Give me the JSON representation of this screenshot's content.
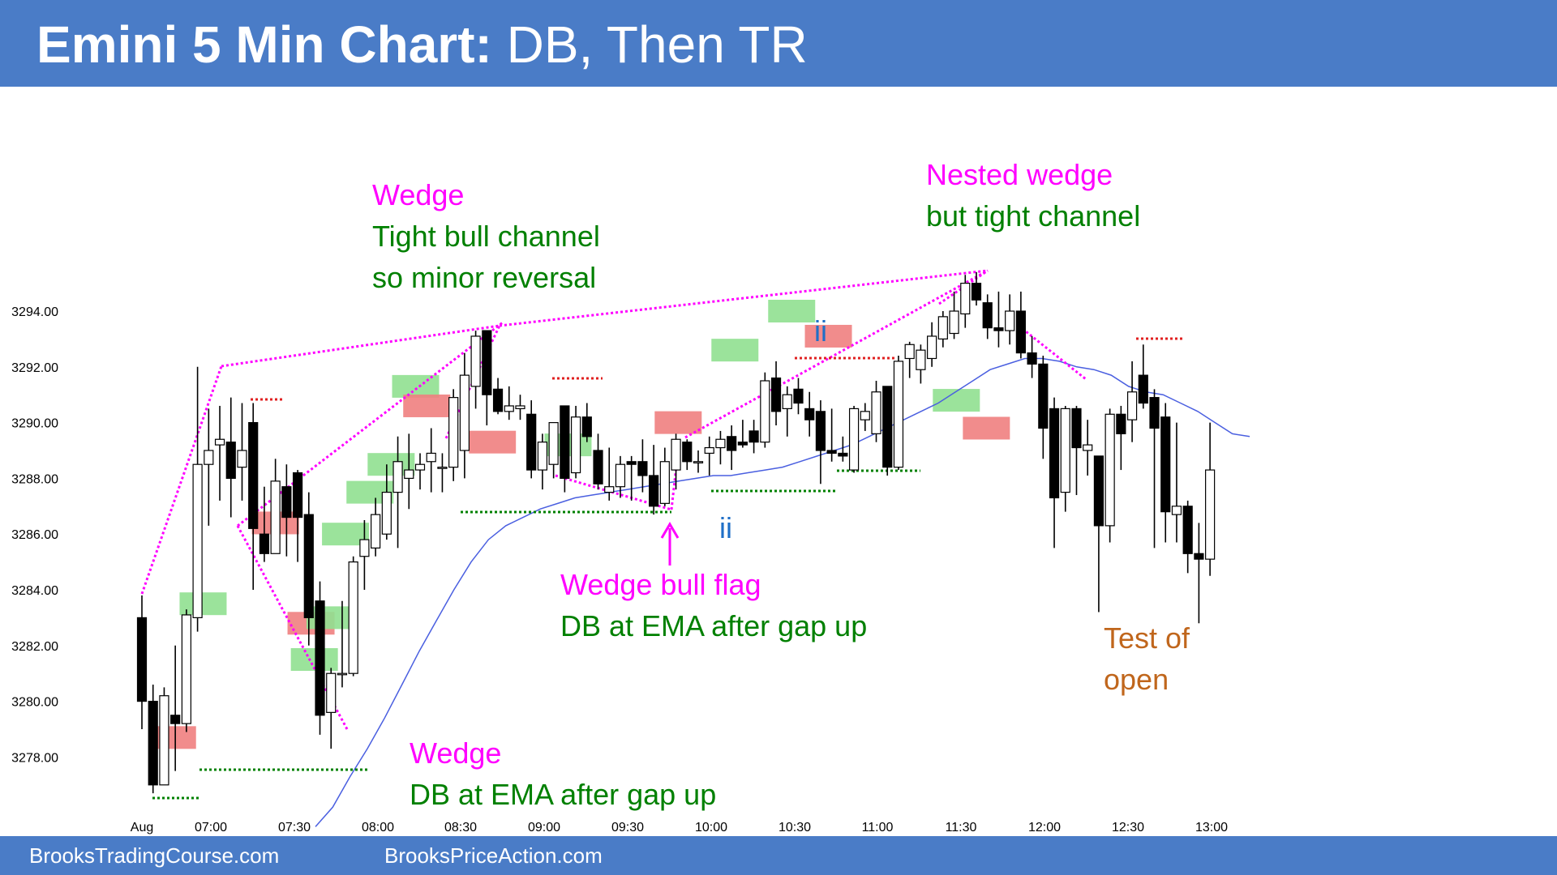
{
  "header": {
    "title_bold": "Emini 5 Min Chart:",
    "title_rest": " DB, Then TR"
  },
  "footer": {
    "left": "BrooksTradingCourse.com",
    "right": "BrooksPriceAction.com"
  },
  "colors": {
    "header_bg": "#4a7cc7",
    "bull_bar": "#90e090",
    "bear_bar": "#f08080",
    "magenta": "#ff00ff",
    "green": "#008000",
    "orange": "#c0661c",
    "ema": "#4a5fe0",
    "ii": "#1f6fc7"
  },
  "chart_data": {
    "type": "candlestick",
    "title": "",
    "ylim": [
      3276.5,
      3297
    ],
    "y_ticks": [
      "3294.00",
      "3292.00",
      "3290.00",
      "3288.00",
      "3286.00",
      "3284.00",
      "3282.00",
      "3280.00",
      "3278.00"
    ],
    "x_ticks": [
      "Aug",
      "07:00",
      "07:30",
      "08:00",
      "08:30",
      "09:00",
      "09:30",
      "10:00",
      "10:30",
      "11:00",
      "11:30",
      "12:00",
      "12:30",
      "13:00"
    ],
    "candles": [
      {
        "o": 3283.0,
        "h": 3283.8,
        "l": 3279.0,
        "c": 3280.0
      },
      {
        "o": 3280.0,
        "h": 3280.6,
        "l": 3276.7,
        "c": 3277.0
      },
      {
        "o": 3277.0,
        "h": 3280.5,
        "l": 3277.0,
        "c": 3280.2
      },
      {
        "o": 3279.5,
        "h": 3282.0,
        "l": 3277.5,
        "c": 3279.2
      },
      {
        "o": 3279.2,
        "h": 3283.3,
        "l": 3278.9,
        "c": 3283.1
      },
      {
        "o": 3283.0,
        "h": 3292.0,
        "l": 3282.5,
        "c": 3288.5
      },
      {
        "o": 3288.5,
        "h": 3290.5,
        "l": 3286.3,
        "c": 3289.0
      },
      {
        "o": 3289.2,
        "h": 3290.6,
        "l": 3287.2,
        "c": 3289.4
      },
      {
        "o": 3289.3,
        "h": 3290.9,
        "l": 3286.6,
        "c": 3288.0
      },
      {
        "o": 3288.4,
        "h": 3290.7,
        "l": 3287.2,
        "c": 3289.0
      },
      {
        "o": 3290.0,
        "h": 3290.7,
        "l": 3284.0,
        "c": 3286.2
      },
      {
        "o": 3286.0,
        "h": 3287.7,
        "l": 3285.0,
        "c": 3285.3
      },
      {
        "o": 3285.3,
        "h": 3288.7,
        "l": 3285.3,
        "c": 3287.9
      },
      {
        "o": 3287.7,
        "h": 3288.5,
        "l": 3285.2,
        "c": 3286.6
      },
      {
        "o": 3288.2,
        "h": 3288.3,
        "l": 3285.0,
        "c": 3286.6
      },
      {
        "o": 3286.7,
        "h": 3287.5,
        "l": 3282.0,
        "c": 3283.0
      },
      {
        "o": 3283.6,
        "h": 3284.3,
        "l": 3278.8,
        "c": 3279.5
      },
      {
        "o": 3279.6,
        "h": 3281.2,
        "l": 3278.3,
        "c": 3281.0
      },
      {
        "o": 3281.0,
        "h": 3283.6,
        "l": 3280.5,
        "c": 3281.0
      },
      {
        "o": 3281.0,
        "h": 3285.2,
        "l": 3280.9,
        "c": 3285.0
      },
      {
        "o": 3285.2,
        "h": 3286.5,
        "l": 3284.0,
        "c": 3285.8
      },
      {
        "o": 3285.5,
        "h": 3287.3,
        "l": 3285.2,
        "c": 3286.7
      },
      {
        "o": 3286.0,
        "h": 3288.5,
        "l": 3285.8,
        "c": 3287.5
      },
      {
        "o": 3287.5,
        "h": 3289.5,
        "l": 3285.5,
        "c": 3288.6
      },
      {
        "o": 3288.0,
        "h": 3289.6,
        "l": 3286.9,
        "c": 3288.3
      },
      {
        "o": 3288.3,
        "h": 3288.9,
        "l": 3287.6,
        "c": 3288.5
      },
      {
        "o": 3288.6,
        "h": 3289.8,
        "l": 3287.5,
        "c": 3288.9
      },
      {
        "o": 3288.4,
        "h": 3288.9,
        "l": 3287.5,
        "c": 3288.4
      },
      {
        "o": 3288.4,
        "h": 3291.2,
        "l": 3287.9,
        "c": 3290.9
      },
      {
        "o": 3289.0,
        "h": 3292.5,
        "l": 3288.0,
        "c": 3291.7
      },
      {
        "o": 3291.3,
        "h": 3293.3,
        "l": 3290.5,
        "c": 3293.1
      },
      {
        "o": 3293.3,
        "h": 3293.3,
        "l": 3289.9,
        "c": 3291.0
      },
      {
        "o": 3291.2,
        "h": 3291.6,
        "l": 3290.3,
        "c": 3290.4
      },
      {
        "o": 3290.4,
        "h": 3291.3,
        "l": 3290.1,
        "c": 3290.6
      },
      {
        "o": 3290.5,
        "h": 3291.0,
        "l": 3290.1,
        "c": 3290.6
      },
      {
        "o": 3290.3,
        "h": 3290.8,
        "l": 3288.0,
        "c": 3288.3
      },
      {
        "o": 3288.3,
        "h": 3289.6,
        "l": 3287.6,
        "c": 3289.3
      },
      {
        "o": 3288.5,
        "h": 3290.0,
        "l": 3288.0,
        "c": 3290.0
      },
      {
        "o": 3290.6,
        "h": 3290.6,
        "l": 3287.5,
        "c": 3288.0
      },
      {
        "o": 3288.2,
        "h": 3290.6,
        "l": 3288.0,
        "c": 3290.2
      },
      {
        "o": 3290.2,
        "h": 3290.7,
        "l": 3289.3,
        "c": 3289.5
      },
      {
        "o": 3289.0,
        "h": 3289.6,
        "l": 3287.6,
        "c": 3287.8
      },
      {
        "o": 3287.5,
        "h": 3289.1,
        "l": 3287.2,
        "c": 3287.7
      },
      {
        "o": 3287.7,
        "h": 3288.8,
        "l": 3287.3,
        "c": 3288.5
      },
      {
        "o": 3288.6,
        "h": 3288.8,
        "l": 3287.2,
        "c": 3288.5
      },
      {
        "o": 3288.6,
        "h": 3289.4,
        "l": 3287.5,
        "c": 3288.1
      },
      {
        "o": 3288.1,
        "h": 3289.2,
        "l": 3286.7,
        "c": 3287.0
      },
      {
        "o": 3287.1,
        "h": 3289.1,
        "l": 3287.0,
        "c": 3288.6
      },
      {
        "o": 3288.3,
        "h": 3289.6,
        "l": 3287.6,
        "c": 3289.4
      },
      {
        "o": 3289.3,
        "h": 3289.4,
        "l": 3288.3,
        "c": 3288.6
      },
      {
        "o": 3288.6,
        "h": 3289.0,
        "l": 3288.2,
        "c": 3288.6
      },
      {
        "o": 3288.9,
        "h": 3289.5,
        "l": 3288.1,
        "c": 3289.1
      },
      {
        "o": 3289.1,
        "h": 3289.7,
        "l": 3288.5,
        "c": 3289.4
      },
      {
        "o": 3289.5,
        "h": 3289.9,
        "l": 3288.3,
        "c": 3289.0
      },
      {
        "o": 3289.3,
        "h": 3290.1,
        "l": 3289.1,
        "c": 3289.2
      },
      {
        "o": 3289.7,
        "h": 3290.1,
        "l": 3288.9,
        "c": 3289.3
      },
      {
        "o": 3289.3,
        "h": 3291.8,
        "l": 3289.1,
        "c": 3291.5
      },
      {
        "o": 3291.6,
        "h": 3292.2,
        "l": 3289.9,
        "c": 3290.4
      },
      {
        "o": 3290.5,
        "h": 3291.3,
        "l": 3289.5,
        "c": 3291.0
      },
      {
        "o": 3291.2,
        "h": 3291.6,
        "l": 3290.3,
        "c": 3290.7
      },
      {
        "o": 3290.5,
        "h": 3291.1,
        "l": 3289.5,
        "c": 3290.1
      },
      {
        "o": 3290.4,
        "h": 3290.8,
        "l": 3287.8,
        "c": 3289.0
      },
      {
        "o": 3289.0,
        "h": 3290.5,
        "l": 3288.6,
        "c": 3288.9
      },
      {
        "o": 3288.9,
        "h": 3289.5,
        "l": 3288.6,
        "c": 3288.8
      },
      {
        "o": 3288.3,
        "h": 3290.6,
        "l": 3288.2,
        "c": 3290.5
      },
      {
        "o": 3290.1,
        "h": 3290.7,
        "l": 3289.7,
        "c": 3290.4
      },
      {
        "o": 3289.6,
        "h": 3291.5,
        "l": 3289.3,
        "c": 3291.1
      },
      {
        "o": 3291.3,
        "h": 3291.3,
        "l": 3288.1,
        "c": 3288.4
      },
      {
        "o": 3288.4,
        "h": 3292.4,
        "l": 3288.3,
        "c": 3292.2
      },
      {
        "o": 3292.3,
        "h": 3292.9,
        "l": 3291.6,
        "c": 3292.8
      },
      {
        "o": 3291.9,
        "h": 3292.8,
        "l": 3291.4,
        "c": 3292.6
      },
      {
        "o": 3292.3,
        "h": 3293.6,
        "l": 3292.0,
        "c": 3293.1
      },
      {
        "o": 3293.0,
        "h": 3294.0,
        "l": 3292.7,
        "c": 3293.8
      },
      {
        "o": 3293.2,
        "h": 3294.7,
        "l": 3293.0,
        "c": 3294.0
      },
      {
        "o": 3293.9,
        "h": 3295.3,
        "l": 3293.4,
        "c": 3295.0
      },
      {
        "o": 3295.0,
        "h": 3295.4,
        "l": 3294.2,
        "c": 3294.4
      },
      {
        "o": 3294.3,
        "h": 3294.6,
        "l": 3293.0,
        "c": 3293.4
      },
      {
        "o": 3293.4,
        "h": 3294.7,
        "l": 3292.7,
        "c": 3293.3
      },
      {
        "o": 3293.3,
        "h": 3294.6,
        "l": 3292.8,
        "c": 3294.0
      },
      {
        "o": 3294.0,
        "h": 3294.7,
        "l": 3292.3,
        "c": 3292.5
      },
      {
        "o": 3292.5,
        "h": 3293.1,
        "l": 3291.6,
        "c": 3292.1
      },
      {
        "o": 3292.1,
        "h": 3292.4,
        "l": 3288.7,
        "c": 3289.8
      },
      {
        "o": 3290.5,
        "h": 3290.9,
        "l": 3285.5,
        "c": 3287.3
      },
      {
        "o": 3287.5,
        "h": 3290.6,
        "l": 3286.8,
        "c": 3290.5
      },
      {
        "o": 3290.5,
        "h": 3290.6,
        "l": 3287.4,
        "c": 3289.1
      },
      {
        "o": 3289.0,
        "h": 3290.1,
        "l": 3288.1,
        "c": 3289.2
      },
      {
        "o": 3288.8,
        "h": 3288.8,
        "l": 3283.2,
        "c": 3286.3
      },
      {
        "o": 3286.3,
        "h": 3290.5,
        "l": 3285.7,
        "c": 3290.3
      },
      {
        "o": 3290.3,
        "h": 3290.6,
        "l": 3288.3,
        "c": 3289.6
      },
      {
        "o": 3290.1,
        "h": 3292.2,
        "l": 3289.3,
        "c": 3291.1
      },
      {
        "o": 3291.7,
        "h": 3292.8,
        "l": 3290.5,
        "c": 3290.7
      },
      {
        "o": 3290.9,
        "h": 3291.2,
        "l": 3285.5,
        "c": 3289.8
      },
      {
        "o": 3290.2,
        "h": 3290.7,
        "l": 3285.7,
        "c": 3286.8
      },
      {
        "o": 3286.7,
        "h": 3290.0,
        "l": 3285.7,
        "c": 3287.0
      },
      {
        "o": 3287.0,
        "h": 3287.2,
        "l": 3284.6,
        "c": 3285.3
      },
      {
        "o": 3285.3,
        "h": 3286.4,
        "l": 3282.8,
        "c": 3285.1
      },
      {
        "o": 3285.1,
        "h": 3290.0,
        "l": 3284.5,
        "c": 3288.3
      }
    ],
    "ema": [
      3275.5,
      3276.2,
      3277.3,
      3278.3,
      3279.4,
      3280.6,
      3281.8,
      3282.9,
      3284.0,
      3285.0,
      3285.8,
      3286.3,
      3286.6,
      3286.9,
      3287.1,
      3287.3,
      3287.4,
      3287.5,
      3287.6,
      3287.7,
      3287.8,
      3287.9,
      3288.0,
      3288.1,
      3288.1,
      3288.2,
      3288.3,
      3288.4,
      3288.6,
      3288.8,
      3289.0,
      3289.2,
      3289.5,
      3289.8,
      3290.1,
      3290.4,
      3290.7,
      3291.1,
      3291.5,
      3291.9,
      3292.1,
      3292.3,
      3292.3,
      3292.2,
      3292.0,
      3291.9,
      3291.7,
      3291.3,
      3291.1,
      3291.0,
      3290.7,
      3290.4,
      3290.0,
      3289.6,
      3289.5
    ],
    "annotations": [
      {
        "lines": [
          "Wedge"
        ],
        "color": "magenta"
      },
      {
        "lines": [
          "Tight bull channel",
          "so minor reversal"
        ],
        "color": "green"
      },
      {
        "lines": [
          "Nested wedge"
        ],
        "color": "magenta"
      },
      {
        "lines": [
          "but tight channel"
        ],
        "color": "green"
      },
      {
        "lines": [
          "Wedge bull flag"
        ],
        "color": "magenta"
      },
      {
        "lines": [
          "DB at EMA after gap up"
        ],
        "color": "green"
      },
      {
        "lines": [
          "Wedge"
        ],
        "color": "magenta"
      },
      {
        "lines": [
          "DB at EMA after gap up"
        ],
        "color": "green"
      },
      {
        "lines": [
          "Test of",
          "open"
        ],
        "color": "orange"
      },
      {
        "lines": [
          "ii"
        ],
        "color": "ii"
      },
      {
        "lines": [
          "ii"
        ],
        "color": "ii"
      }
    ]
  }
}
